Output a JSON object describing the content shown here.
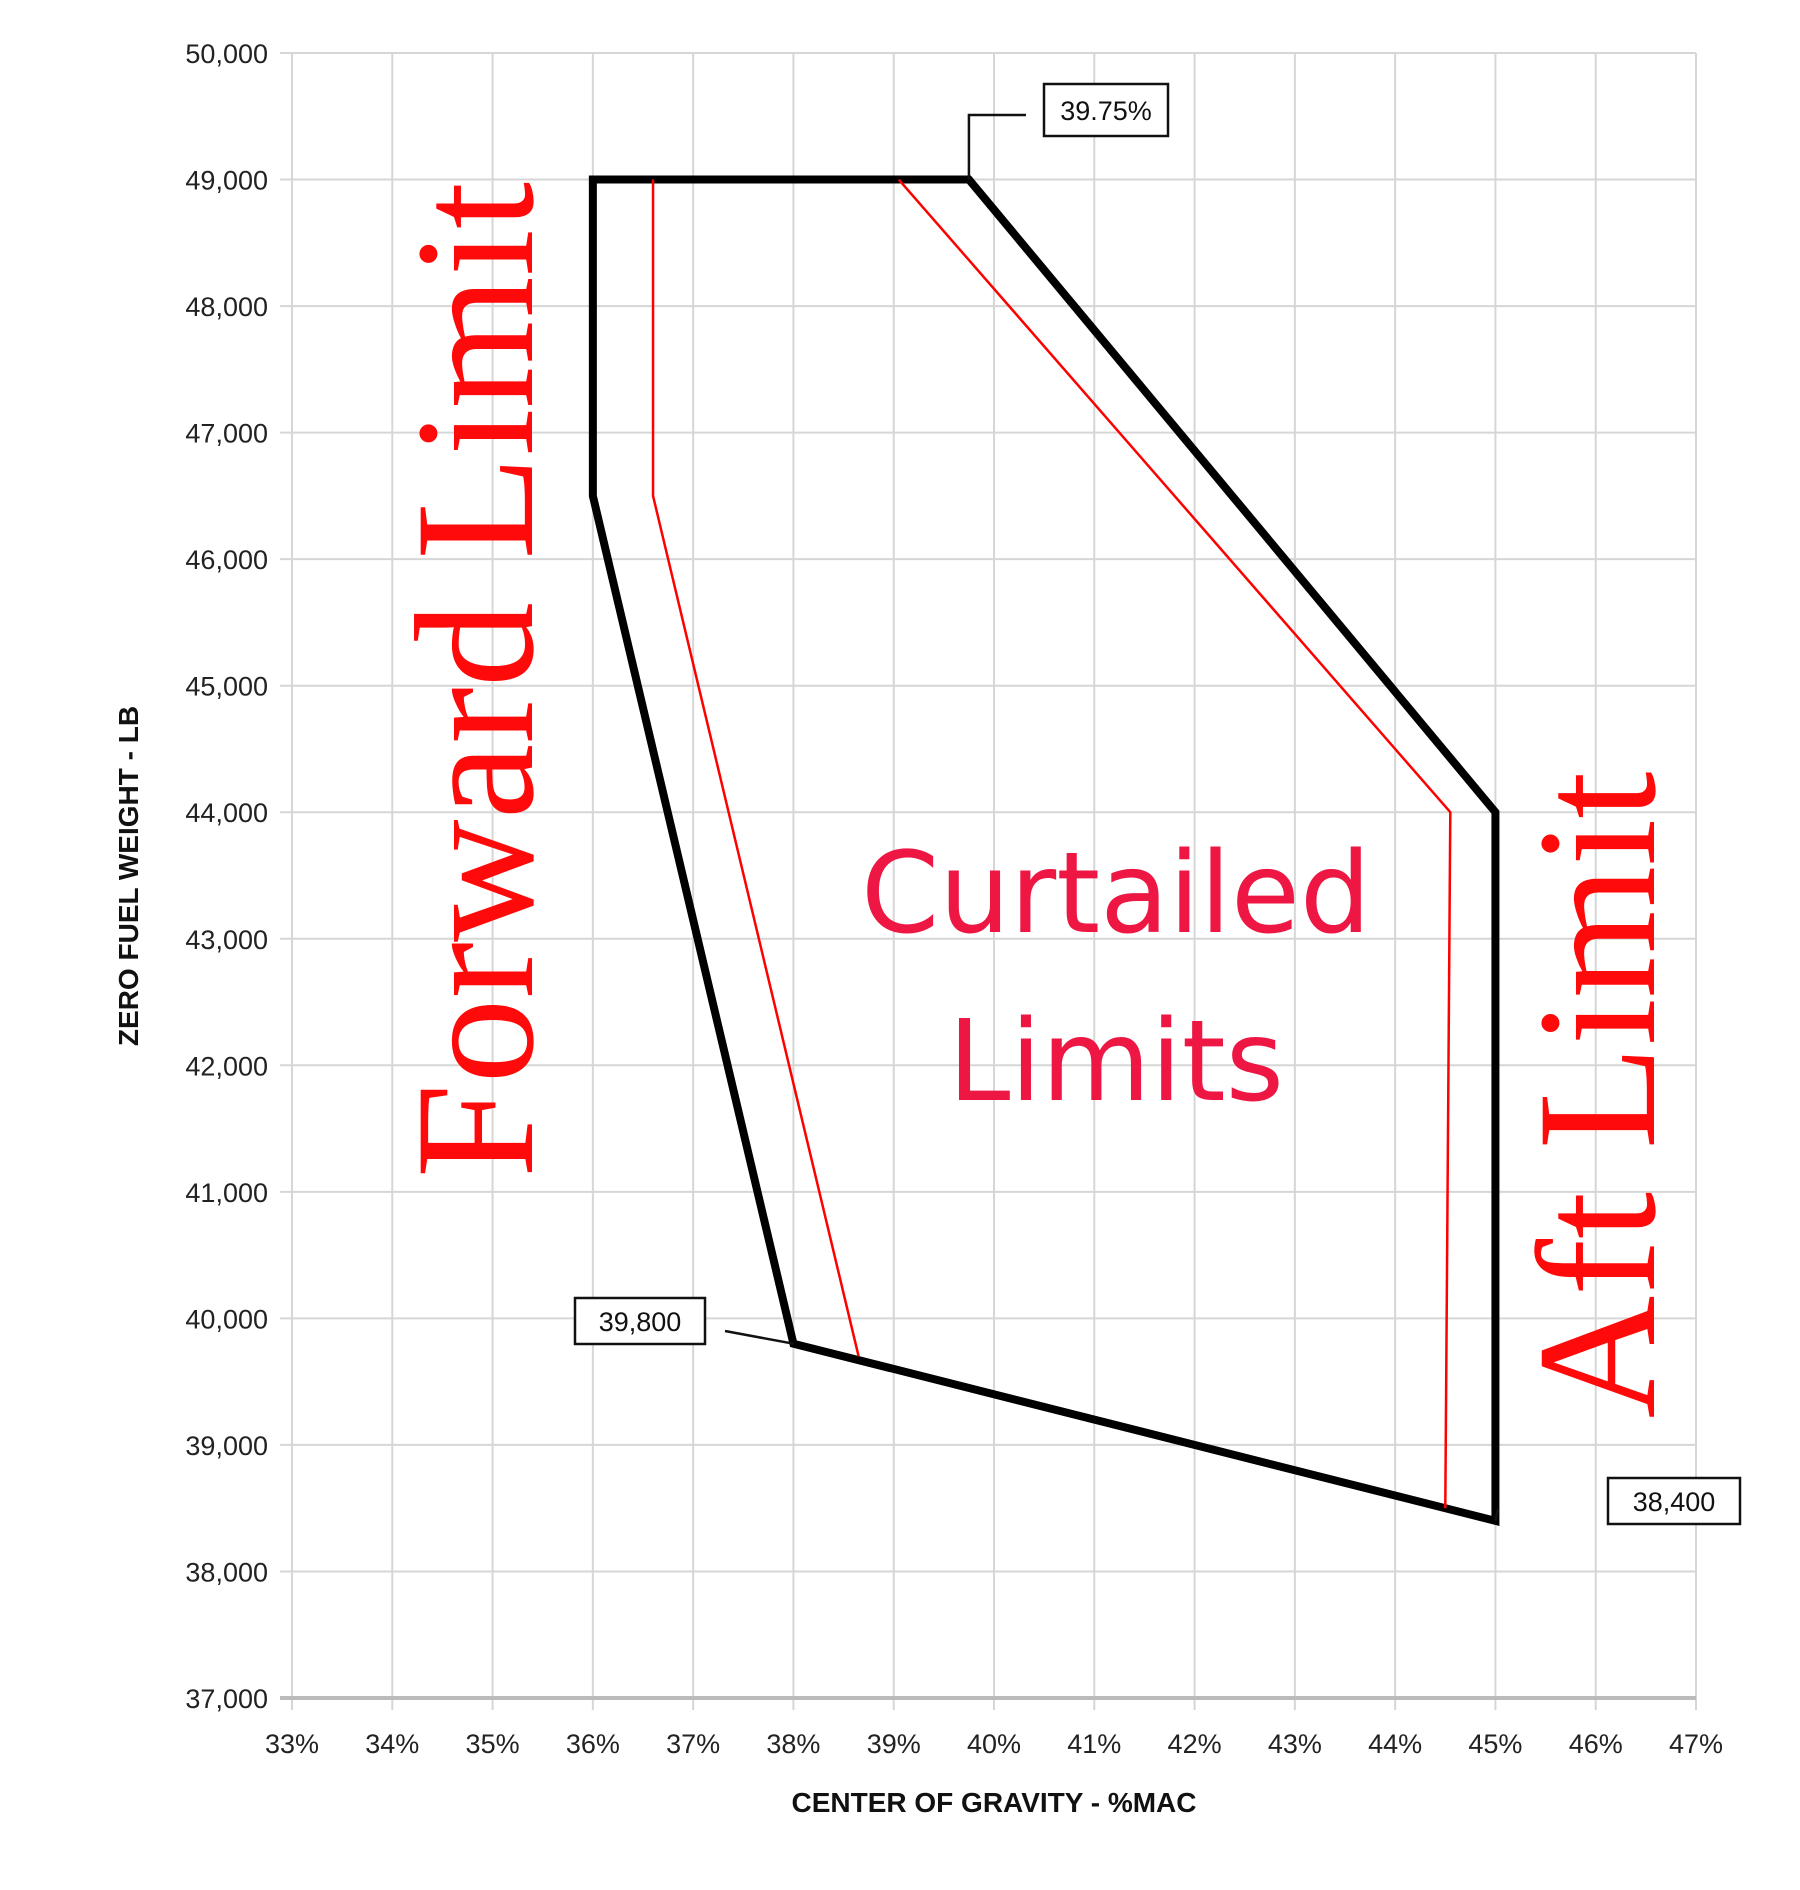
{
  "chart_data": {
    "type": "line",
    "xlabel": "CENTER OF GRAVITY - %MAC",
    "ylabel": "ZERO FUEL WEIGHT - LB",
    "xlim": [
      33,
      47
    ],
    "ylim": [
      37000,
      50000
    ],
    "x_ticks": [
      "33%",
      "34%",
      "35%",
      "36%",
      "37%",
      "38%",
      "39%",
      "40%",
      "41%",
      "42%",
      "43%",
      "44%",
      "45%",
      "46%",
      "47%"
    ],
    "y_ticks": [
      "37,000",
      "38,000",
      "39,000",
      "40,000",
      "41,000",
      "42,000",
      "43,000",
      "44,000",
      "45,000",
      "46,000",
      "47,000",
      "48,000",
      "49,000",
      "50,000"
    ],
    "grid": true,
    "series": [
      {
        "color": "#000000",
        "closed": true,
        "points": [
          [
            36,
            49000
          ],
          [
            39.75,
            49000
          ],
          [
            45,
            44000
          ],
          [
            45,
            38400
          ],
          [
            38,
            39800
          ],
          [
            36,
            46500
          ]
        ]
      },
      {
        "color": "#ff0000",
        "points": [
          [
            36.6,
            49000
          ],
          [
            36.6,
            46500
          ],
          [
            38.65,
            39700
          ]
        ]
      },
      {
        "color": "#ff0000",
        "points": [
          [
            39.05,
            49000
          ],
          [
            44.55,
            44000
          ],
          [
            44.5,
            38500
          ]
        ]
      }
    ],
    "callouts": [
      {
        "text": "39.75%",
        "x": 39.75,
        "y": 49000
      },
      {
        "text": "39,800",
        "x": 38,
        "y": 39800
      },
      {
        "text": "38,400",
        "x": 45,
        "y": 38400
      }
    ],
    "annotations": {
      "forward": "Forward Limit",
      "aft": "Aft Limit",
      "curtailed_line1": "Curtailed",
      "curtailed_line2": "Limits"
    }
  }
}
